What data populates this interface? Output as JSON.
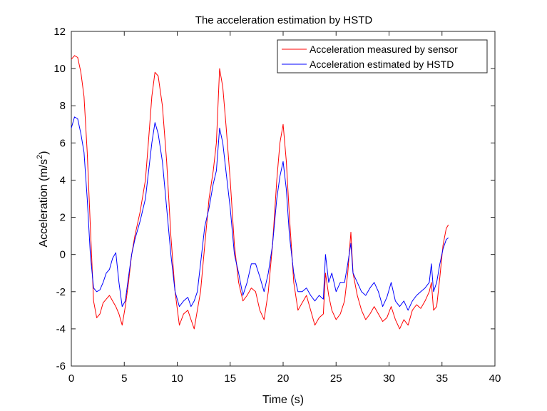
{
  "chart_data": {
    "type": "line",
    "title": "The acceleration estimation by HSTD",
    "xlabel": "Time (s)",
    "ylabel_main": "Acceleration (m/s",
    "ylabel_sup": "2",
    "ylabel_close": ")",
    "xlim": [
      0,
      40
    ],
    "ylim": [
      -6,
      12
    ],
    "xticks": [
      0,
      5,
      10,
      15,
      20,
      25,
      30,
      35,
      40
    ],
    "yticks": [
      -6,
      -4,
      -2,
      0,
      2,
      4,
      6,
      8,
      10,
      12
    ],
    "grid": false,
    "legend_position": "top-right",
    "series": [
      {
        "name": "Acceleration measured by sensor",
        "color": "#ff0000",
        "x": [
          0,
          0.3,
          0.6,
          0.9,
          1.2,
          1.5,
          1.8,
          2.1,
          2.4,
          2.7,
          3.0,
          3.3,
          3.6,
          3.9,
          4.2,
          4.5,
          4.8,
          5.1,
          5.4,
          5.7,
          6.0,
          6.5,
          7.0,
          7.3,
          7.6,
          7.9,
          8.2,
          8.6,
          9.0,
          9.4,
          9.8,
          10.2,
          10.6,
          11.0,
          11.3,
          11.6,
          11.9,
          12.2,
          12.6,
          13.0,
          13.4,
          13.7,
          14.0,
          14.3,
          14.6,
          15.0,
          15.4,
          15.8,
          16.2,
          16.6,
          17.0,
          17.4,
          17.8,
          18.2,
          18.6,
          19.0,
          19.4,
          19.7,
          20.0,
          20.3,
          20.6,
          21.0,
          21.4,
          21.8,
          22.2,
          22.6,
          23.0,
          23.4,
          23.8,
          24.0,
          24.3,
          24.6,
          25.0,
          25.4,
          25.8,
          26.1,
          26.4,
          26.6,
          27.0,
          27.4,
          27.8,
          28.2,
          28.6,
          29.0,
          29.4,
          29.8,
          30.2,
          30.6,
          31.0,
          31.4,
          31.8,
          32.2,
          32.6,
          33.0,
          33.4,
          33.8,
          34.0,
          34.2,
          34.5,
          34.8,
          35.1,
          35.4,
          35.6
        ],
        "y": [
          10.5,
          10.7,
          10.6,
          9.8,
          8.5,
          5.5,
          1.5,
          -2.5,
          -3.4,
          -3.2,
          -2.6,
          -2.4,
          -2.2,
          -2.5,
          -2.8,
          -3.2,
          -3.8,
          -2.8,
          -1.5,
          0.0,
          1.0,
          2.3,
          4.0,
          6.2,
          8.5,
          9.8,
          9.6,
          8.0,
          5.0,
          1.0,
          -2.0,
          -3.8,
          -3.2,
          -3.0,
          -3.5,
          -4.0,
          -3.0,
          -2.0,
          0.5,
          3.0,
          4.5,
          6.0,
          10.0,
          9.0,
          7.0,
          4.0,
          0.5,
          -1.5,
          -2.5,
          -2.2,
          -1.8,
          -2.0,
          -3.0,
          -3.5,
          -2.0,
          0.5,
          4.0,
          6.0,
          7.0,
          5.0,
          2.0,
          -1.5,
          -3.0,
          -2.6,
          -2.2,
          -3.0,
          -3.8,
          -3.4,
          -3.2,
          -1.0,
          -2.2,
          -3.0,
          -3.5,
          -3.2,
          -2.5,
          -1.0,
          1.2,
          -1.0,
          -2.2,
          -3.0,
          -3.5,
          -3.2,
          -2.8,
          -3.2,
          -3.6,
          -3.4,
          -2.8,
          -3.5,
          -4.0,
          -3.5,
          -3.8,
          -3.0,
          -2.7,
          -2.9,
          -2.5,
          -2.0,
          -1.5,
          -3.0,
          -2.8,
          -1.2,
          0.5,
          1.4,
          1.6
        ]
      },
      {
        "name": "Acceleration estimated by HSTD",
        "color": "#0000ff",
        "x": [
          0,
          0.3,
          0.6,
          0.9,
          1.2,
          1.5,
          1.8,
          2.1,
          2.4,
          2.7,
          3.0,
          3.3,
          3.6,
          3.9,
          4.2,
          4.5,
          4.8,
          5.1,
          5.4,
          5.7,
          6.0,
          6.5,
          7.0,
          7.3,
          7.6,
          7.9,
          8.2,
          8.6,
          9.0,
          9.4,
          9.8,
          10.2,
          10.6,
          11.0,
          11.3,
          11.6,
          11.9,
          12.2,
          12.6,
          13.0,
          13.4,
          13.7,
          14.0,
          14.3,
          14.6,
          15.0,
          15.4,
          15.8,
          16.2,
          16.6,
          17.0,
          17.4,
          17.8,
          18.2,
          18.6,
          19.0,
          19.4,
          19.7,
          20.0,
          20.3,
          20.6,
          21.0,
          21.4,
          21.8,
          22.2,
          22.6,
          23.0,
          23.4,
          23.8,
          24.0,
          24.3,
          24.6,
          25.0,
          25.4,
          25.8,
          26.1,
          26.4,
          26.6,
          27.0,
          27.4,
          27.8,
          28.2,
          28.6,
          29.0,
          29.4,
          29.8,
          30.2,
          30.6,
          31.0,
          31.4,
          31.8,
          32.2,
          32.6,
          33.0,
          33.4,
          33.8,
          34.0,
          34.2,
          34.5,
          34.8,
          35.1,
          35.4,
          35.6
        ],
        "y": [
          6.8,
          7.4,
          7.3,
          6.5,
          5.5,
          3.0,
          0.0,
          -1.8,
          -2.0,
          -1.9,
          -1.5,
          -1.0,
          -0.8,
          -0.2,
          0.1,
          -1.5,
          -2.8,
          -2.5,
          -1.2,
          0.0,
          0.8,
          1.8,
          3.0,
          4.5,
          6.0,
          7.1,
          6.5,
          5.0,
          2.5,
          0.0,
          -2.0,
          -2.8,
          -2.5,
          -2.3,
          -2.8,
          -2.5,
          -2.0,
          -0.5,
          1.5,
          2.5,
          3.8,
          4.5,
          6.8,
          6.0,
          4.5,
          2.5,
          0.0,
          -1.0,
          -2.2,
          -1.5,
          -0.5,
          -0.5,
          -1.2,
          -2.0,
          -1.0,
          0.5,
          3.0,
          4.2,
          5.0,
          3.5,
          1.0,
          -1.0,
          -2.0,
          -2.0,
          -1.8,
          -2.2,
          -2.5,
          -2.2,
          -2.4,
          0.0,
          -1.5,
          -1.0,
          -2.0,
          -1.5,
          -1.5,
          -0.5,
          0.6,
          -1.0,
          -1.5,
          -2.0,
          -2.2,
          -1.8,
          -1.5,
          -2.0,
          -2.8,
          -2.3,
          -1.5,
          -2.5,
          -2.8,
          -2.5,
          -3.0,
          -2.5,
          -2.2,
          -2.0,
          -1.8,
          -1.5,
          -0.5,
          -2.0,
          -1.5,
          -0.5,
          0.3,
          0.8,
          0.9
        ]
      }
    ]
  }
}
